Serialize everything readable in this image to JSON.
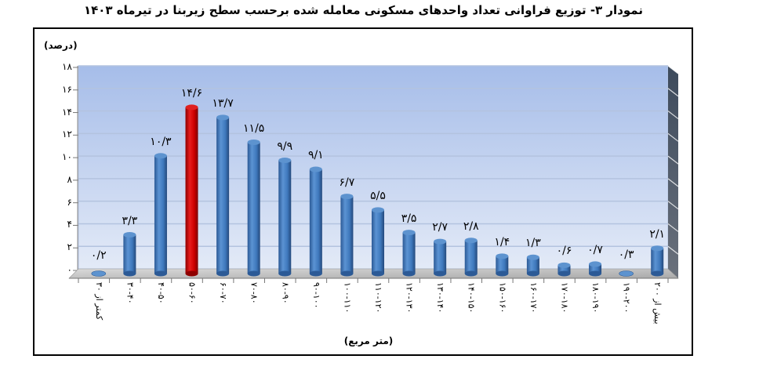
{
  "title": "نمودار ۳- توزیع فراوانی تعداد واحدهای مسکونی معامله شده برحسب سطح زیربنا در تیرماه ۱۴۰۳",
  "colors": {
    "bar": "#3f79bd",
    "highlight": "#cc0000",
    "wall_top": "#a6bde9",
    "wall_bottom": "#dde6f6",
    "side_wall": "#434f60",
    "floor": "#c8c8c8"
  },
  "chart_data": {
    "type": "bar",
    "title": "نمودار ۳- توزیع فراوانی تعداد واحدهای مسکونی معامله شده برحسب سطح زیربنا در تیرماه ۱۴۰۳",
    "xlabel": "(متر مربع)",
    "ylabel": "(درصد)",
    "ylim": [
      0,
      18
    ],
    "yticks": [
      0,
      2,
      4,
      6,
      8,
      10,
      12,
      14,
      16,
      18
    ],
    "ytick_labels": [
      "۰",
      "۲",
      "۴",
      "۶",
      "۸",
      "۱۰",
      "۱۲",
      "۱۴",
      "۱۶",
      "۱۸"
    ],
    "grid": true,
    "legend": "none",
    "categories": [
      "کمتر از ۳۰",
      "۳۰-۴۰",
      "۴۰-۵۰",
      "۵۰-۶۰",
      "۶۰-۷۰",
      "۷۰-۸۰",
      "۸۰-۹۰",
      "۹۰-۱۰۰",
      "۱۰۰-۱۱۰",
      "۱۱۰-۱۲۰",
      "۱۲۰-۱۳۰",
      "۱۳۰-۱۴۰",
      "۱۴۰-۱۵۰",
      "۱۵۰-۱۶۰",
      "۱۶۰-۱۷۰",
      "۱۷۰-۱۸۰",
      "۱۸۰-۱۹۰",
      "۱۹۰-۲۰۰",
      "بیش از ۲۰۰"
    ],
    "values": [
      0.2,
      3.3,
      10.3,
      14.6,
      13.7,
      11.5,
      9.9,
      9.1,
      6.7,
      5.5,
      3.5,
      2.7,
      2.8,
      1.4,
      1.3,
      0.6,
      0.7,
      0.3,
      2.1
    ],
    "value_labels": [
      "۰/۲",
      "۳/۳",
      "۱۰/۳",
      "۱۴/۶",
      "۱۳/۷",
      "۱۱/۵",
      "۹/۹",
      "۹/۱",
      "۶/۷",
      "۵/۵",
      "۳/۵",
      "۲/۷",
      "۲/۸",
      "۱/۴",
      "۱/۳",
      "۰/۶",
      "۰/۷",
      "۰/۳",
      "۲/۱"
    ],
    "highlight_index": 3
  }
}
